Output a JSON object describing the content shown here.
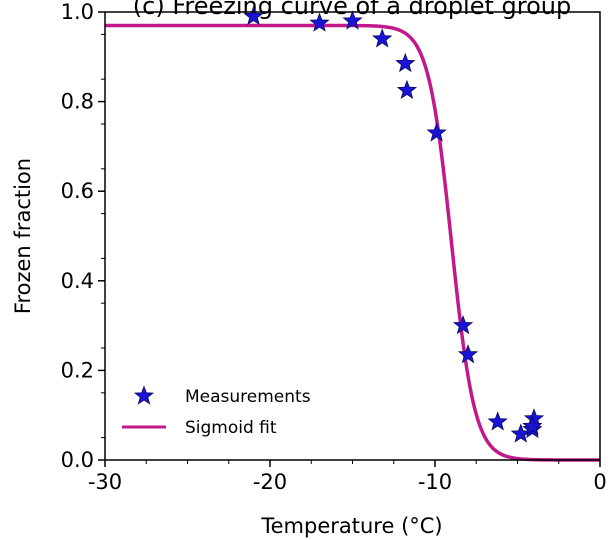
{
  "chart_data": {
    "type": "scatter",
    "title": "(c) Freezing curve of a droplet group",
    "xlabel": "Temperature (°C)",
    "ylabel": "Frozen fraction",
    "xlim": [
      -30,
      0
    ],
    "ylim": [
      0.0,
      1.0
    ],
    "xticks": [
      -30,
      -20,
      -10,
      0
    ],
    "xtick_labels": [
      "-30",
      "-20",
      "-10",
      "0"
    ],
    "yticks": [
      0.0,
      0.2,
      0.4,
      0.6,
      0.8,
      1.0
    ],
    "ytick_labels": [
      "0.0",
      "0.2",
      "0.4",
      "0.6",
      "0.8",
      "1.0"
    ],
    "grid": false,
    "legend_position": "lower-left",
    "series": [
      {
        "name": "Measurements",
        "kind": "scatter",
        "marker": "star",
        "color": "#1a12d6",
        "points": [
          [
            -21.0,
            0.99
          ],
          [
            -17.0,
            0.975
          ],
          [
            -15.0,
            0.98
          ],
          [
            -13.2,
            0.94
          ],
          [
            -11.8,
            0.885
          ],
          [
            -11.7,
            0.825
          ],
          [
            -9.9,
            0.73
          ],
          [
            -8.3,
            0.3
          ],
          [
            -8.0,
            0.235
          ],
          [
            -6.2,
            0.085
          ],
          [
            -4.8,
            0.058
          ],
          [
            -4.1,
            0.068
          ],
          [
            -4.0,
            0.092
          ],
          [
            -4.1,
            0.075
          ]
        ]
      },
      {
        "name": "Sigmoid fit",
        "kind": "line",
        "color": "#c2188a",
        "model": {
          "amplitude": 0.97,
          "midpoint": -9.0,
          "scale": 0.7
        }
      }
    ]
  }
}
